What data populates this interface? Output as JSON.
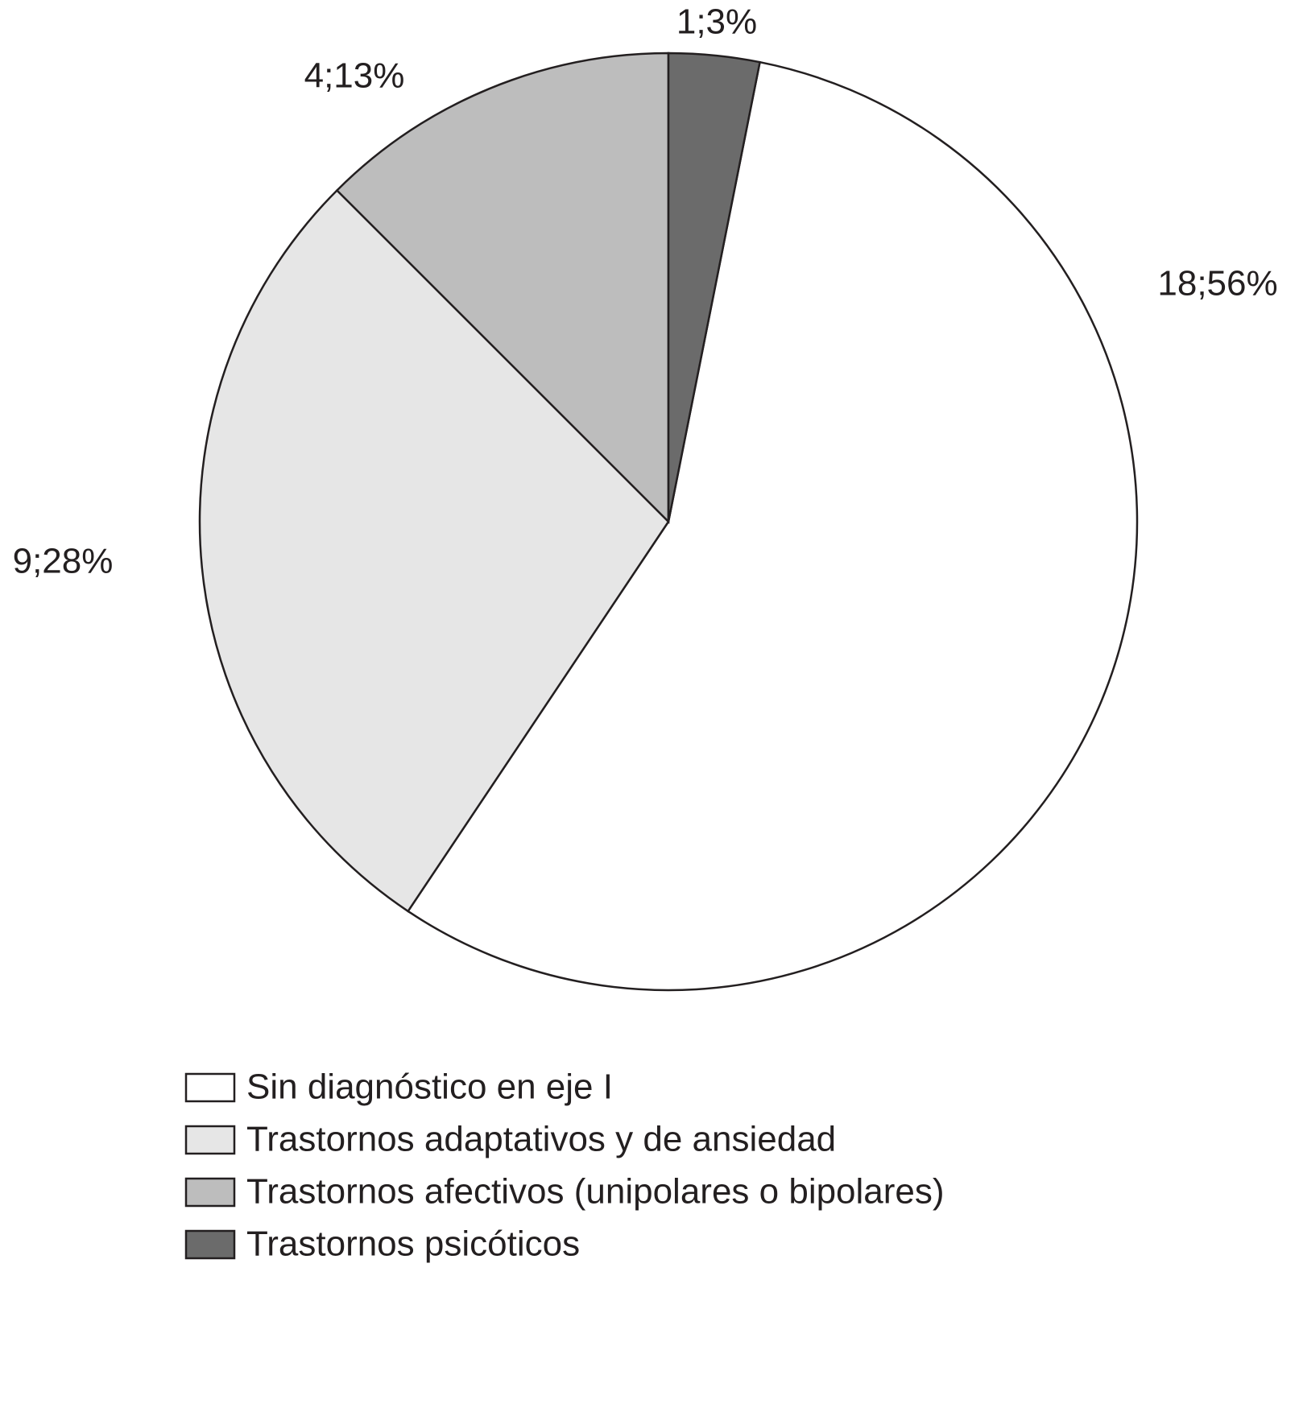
{
  "chart_data": {
    "type": "pie",
    "categories": [
      "Sin diagnóstico en eje I",
      "Trastornos adaptativos y de ansiedad",
      "Trastornos afectivos (unipolares o bipolares)",
      "Trastornos psicóticos"
    ],
    "values": [
      18,
      9,
      4,
      1
    ],
    "value_labels": [
      "18;56%",
      "9;28%",
      "4;13%",
      "1;3%"
    ],
    "colors": [
      "#ffffff",
      "#e6e6e6",
      "#bdbdbd",
      "#6b6b6b"
    ],
    "legend": "bottom"
  }
}
